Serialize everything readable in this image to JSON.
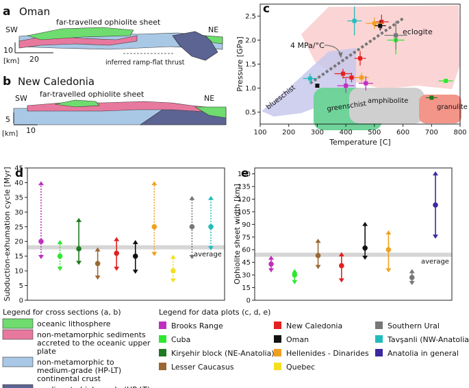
{
  "panels": {
    "a": {
      "letter": "a",
      "title": "Oman",
      "left_dir": "SW",
      "right_dir": "NE",
      "sheet_label": "far-travelled ophiolite sheet",
      "thrust_label": "inferred ramp-flat thrust",
      "vscale": "10",
      "hscale": "20",
      "unit": "[km]"
    },
    "b": {
      "letter": "b",
      "title": "New Caledonia",
      "left_dir": "SW",
      "right_dir": "NE",
      "sheet_label": "far-travelled ophiolite sheet",
      "vscale": "5",
      "hscale": "10",
      "unit": "[km]"
    },
    "c": {
      "letter": "c"
    },
    "d": {
      "letter": "d"
    },
    "e": {
      "letter": "e"
    }
  },
  "chart_data": [
    {
      "id": "c",
      "type": "scatter",
      "xlabel": "Temperature [C]",
      "ylabel": "Pressure [GPa]",
      "xlim": [
        100,
        800
      ],
      "ylim": [
        0.25,
        2.75
      ],
      "xticks": [
        "100",
        "200",
        "300",
        "400",
        "500",
        "600",
        "700",
        "800"
      ],
      "yticks": [
        "0.5",
        "1.0",
        "1.5",
        "2.0",
        "2.5"
      ],
      "facies": [
        "eclogite",
        "blueschist",
        "greenschist",
        "amphibolite",
        "granulite"
      ],
      "gradient_label": "4 MPa/°C",
      "points": [
        {
          "name": "Brooks Range",
          "x": 400,
          "y": 1.05,
          "xerr": 30,
          "yerr": 0.15
        },
        {
          "name": "Brooks Range",
          "x": 470,
          "y": 1.1,
          "xerr": 25,
          "yerr": 0.15
        },
        {
          "name": "Cuba",
          "x": 575,
          "y": 2.0,
          "xerr": 30,
          "yerr": 0.3
        },
        {
          "name": "Cuba",
          "x": 750,
          "y": 1.15,
          "xerr": 25,
          "yerr": 0.0
        },
        {
          "name": "Kirşehir block (NE-Anatolia)",
          "x": 700,
          "y": 0.8,
          "xerr": 20,
          "yerr": 0.0
        },
        {
          "name": "New Caledonia",
          "x": 525,
          "y": 2.38,
          "xerr": 25,
          "yerr": 0.15
        },
        {
          "name": "New Caledonia",
          "x": 450,
          "y": 1.62,
          "xerr": 20,
          "yerr": 0.15
        },
        {
          "name": "New Caledonia",
          "x": 390,
          "y": 1.3,
          "xerr": 30,
          "yerr": 0.1
        },
        {
          "name": "New Caledonia",
          "x": 420,
          "y": 1.22,
          "xerr": 30,
          "yerr": 0.1
        },
        {
          "name": "Oman",
          "x": 520,
          "y": 2.3,
          "xerr": 20,
          "yerr": 0.1
        },
        {
          "name": "Oman",
          "x": 300,
          "y": 1.05,
          "xerr": 0,
          "yerr": 0.0
        },
        {
          "name": "Hellenides - Dinarides",
          "x": 500,
          "y": 2.35,
          "xerr": 30,
          "yerr": 0.12
        },
        {
          "name": "Hellenides - Dinarides",
          "x": 455,
          "y": 1.22,
          "xerr": 25,
          "yerr": 0.1
        },
        {
          "name": "Southern Ural",
          "x": 575,
          "y": 2.1,
          "xerr": 40,
          "yerr": 0.3
        },
        {
          "name": "Tavşanli (NW-Anatolia)",
          "x": 430,
          "y": 2.4,
          "xerr": 25,
          "yerr": 0.3
        },
        {
          "name": "Tavşanli (NW-Anatolia)",
          "x": 275,
          "y": 1.2,
          "xerr": 25,
          "yerr": 0.1
        }
      ]
    },
    {
      "id": "d",
      "type": "range",
      "ylabel": "Subduction-exhumation cycle [Myr]",
      "ylim": [
        0,
        45
      ],
      "yticks": [
        "0",
        "5",
        "10",
        "15",
        "20",
        "25",
        "30",
        "35",
        "40",
        "45"
      ],
      "average": 18,
      "average_label": "average",
      "series": [
        {
          "name": "Brooks Range",
          "center": 20,
          "low": 14,
          "high": 40.5,
          "style": "dotted"
        },
        {
          "name": "Cuba",
          "center": 15,
          "low": 10,
          "high": 20.5,
          "style": "dotted"
        },
        {
          "name": "Kirşehir block (NE-Anatolia)",
          "center": 17.5,
          "low": 12,
          "high": 28,
          "style": "solid"
        },
        {
          "name": "Lesser Caucasus",
          "center": 12.5,
          "low": 7,
          "high": 18,
          "style": "solid"
        },
        {
          "name": "New Caledonia",
          "center": 16,
          "low": 10,
          "high": 21.5,
          "style": "solid"
        },
        {
          "name": "Oman",
          "center": 15,
          "low": 9,
          "high": 20.5,
          "style": "solid"
        },
        {
          "name": "Hellenides - Dinarides",
          "center": 25,
          "low": 15,
          "high": 40.5,
          "style": "dotted"
        },
        {
          "name": "Quebec",
          "center": 10,
          "low": 6,
          "high": 15.5,
          "style": "dotted"
        },
        {
          "name": "Southern Ural",
          "center": 25,
          "low": 14,
          "high": 35.5,
          "style": "dotted"
        },
        {
          "name": "Tavşanli (NW-Anatolia)",
          "center": 25,
          "low": 17,
          "high": 35.5,
          "style": "dotted"
        }
      ]
    },
    {
      "id": "e",
      "type": "range",
      "ylabel": "Ophiolite sheet width [km]",
      "ylim": [
        0,
        157
      ],
      "yticks": [
        "0",
        "15",
        "30",
        "45",
        "60",
        "75",
        "90",
        "105",
        "120",
        "135",
        "150"
      ],
      "average": 54,
      "average_label": "average",
      "series": [
        {
          "name": "Brooks Range",
          "center": 43,
          "low": 33,
          "high": 53,
          "style": "solid"
        },
        {
          "name": "Cuba",
          "center": 30,
          "low": 19,
          "high": 37,
          "style": "solid"
        },
        {
          "name": "Lesser Caucasus",
          "center": 53,
          "low": 37,
          "high": 73,
          "style": "solid"
        },
        {
          "name": "New Caledonia",
          "center": 41,
          "low": 21,
          "high": 57,
          "style": "solid"
        },
        {
          "name": "Oman",
          "center": 62,
          "low": 48,
          "high": 93,
          "style": "solid"
        },
        {
          "name": "Hellenides - Dinarides",
          "center": 60,
          "low": 33,
          "high": 83,
          "style": "solid"
        },
        {
          "name": "Southern Ural",
          "center": 27,
          "low": 18,
          "high": 37,
          "style": "solid"
        },
        {
          "name": "Anatolia in general",
          "center": 113,
          "low": 73,
          "high": 153,
          "style": "solid"
        }
      ]
    }
  ],
  "legend_cross": {
    "title": "Legend for cross sections (a, b)",
    "items": [
      {
        "label": "oceanic lithosphere",
        "color": "#6fdc6f"
      },
      {
        "label": "non-metamorphic sediments accreted to the oceanic upper plate",
        "color": "#e8799e"
      },
      {
        "label": "non-metamorphic to medium-grade (HP-LT) continental crust",
        "color": "#a9c8e6"
      },
      {
        "label": "medium to high-grade (HP-LT) continental crust",
        "color": "#5c6494"
      }
    ]
  },
  "legend_data": {
    "title": "Legend for data plots (c, d, e)",
    "items": [
      {
        "label": "Brooks Range",
        "color": "#bf2fbf"
      },
      {
        "label": "Cuba",
        "color": "#2ee82e"
      },
      {
        "label": "Kirşehir block (NE-Anatolia)",
        "color": "#1e7a1e"
      },
      {
        "label": "Lesser Caucasus",
        "color": "#9a6832"
      },
      {
        "label": "New Caledonia",
        "color": "#e32020"
      },
      {
        "label": "Oman",
        "color": "#111111"
      },
      {
        "label": "Hellenides - Dinarides",
        "color": "#f0a020"
      },
      {
        "label": "Quebec",
        "color": "#f5e020"
      },
      {
        "label": "Southern Ural",
        "color": "#777777"
      },
      {
        "label": "Tavşanli (NW-Anatolia)",
        "color": "#22bcbc"
      },
      {
        "label": "Anatolia in general",
        "color": "#3a2aa0"
      }
    ]
  }
}
